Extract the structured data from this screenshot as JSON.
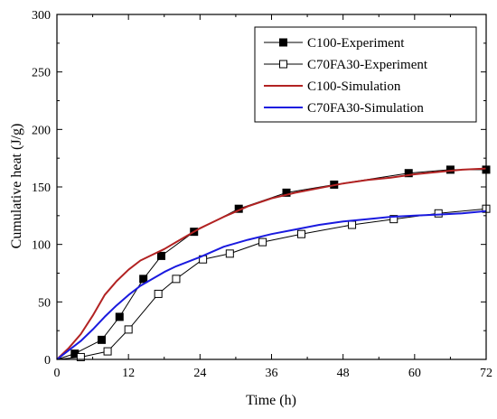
{
  "chart_data": {
    "type": "line",
    "xlabel": "Time (h)",
    "ylabel": "Cumulative heat (J/g)",
    "xlim": [
      0,
      72
    ],
    "ylim": [
      0,
      300
    ],
    "xticks": [
      0,
      12,
      24,
      36,
      48,
      60,
      72
    ],
    "yticks": [
      0,
      50,
      100,
      150,
      200,
      250,
      300
    ],
    "xtick_labels": [
      "0",
      "12",
      "24",
      "36",
      "48",
      "60",
      "72"
    ],
    "ytick_labels": [
      "0",
      "50",
      "100",
      "150",
      "200",
      "250",
      "300"
    ],
    "grid": false,
    "legend_position": "top-right",
    "series": [
      {
        "name": "C100-Experiment",
        "style": "markers-line",
        "marker": "filled-square",
        "color": "#000000",
        "x": [
          0,
          3,
          7.5,
          10.5,
          14.5,
          17.5,
          23,
          30.5,
          38.5,
          46.5,
          59,
          66,
          72
        ],
        "y": [
          0,
          5,
          17,
          37,
          70,
          90,
          111,
          131,
          145,
          152,
          162,
          165,
          165
        ]
      },
      {
        "name": "C70FA30-Experiment",
        "style": "markers-line",
        "marker": "open-square",
        "color": "#000000",
        "x": [
          0,
          4,
          8.5,
          12,
          17,
          20,
          24.5,
          29,
          34.5,
          41,
          49.5,
          56.5,
          64,
          72
        ],
        "y": [
          0,
          2,
          7,
          26,
          57,
          70,
          87,
          92,
          102,
          109,
          117,
          122,
          127,
          131
        ]
      },
      {
        "name": "C100-Simulation",
        "style": "line",
        "color": "#b22222",
        "x": [
          0,
          2,
          4,
          6,
          8,
          10,
          12,
          14,
          16,
          18,
          20,
          24,
          28,
          32,
          36,
          40,
          44,
          48,
          52,
          56,
          60,
          64,
          68,
          72
        ],
        "y": [
          0,
          10,
          22,
          38,
          56,
          68,
          78,
          86,
          91,
          96,
          102,
          114,
          124,
          133,
          140,
          145,
          149,
          153,
          156,
          158,
          161,
          163,
          165,
          166
        ]
      },
      {
        "name": "C70FA30-Simulation",
        "style": "line",
        "color": "#1a1adf",
        "x": [
          0,
          2,
          4,
          6,
          8,
          10,
          12,
          14,
          16,
          18,
          20,
          24,
          28,
          32,
          36,
          40,
          44,
          48,
          52,
          56,
          60,
          64,
          68,
          72
        ],
        "y": [
          0,
          8,
          16,
          26,
          37,
          47,
          56,
          64,
          70,
          76,
          81,
          89,
          98,
          104,
          109,
          113,
          117,
          120,
          122,
          124,
          125,
          126,
          127,
          129
        ]
      }
    ]
  }
}
